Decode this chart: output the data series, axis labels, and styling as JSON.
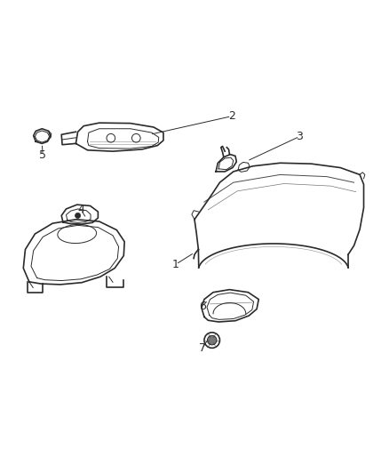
{
  "bg_color": "#ffffff",
  "line_color": "#2a2a2a",
  "label_color": "#333333",
  "fig_width": 4.38,
  "fig_height": 5.33,
  "dpi": 100
}
